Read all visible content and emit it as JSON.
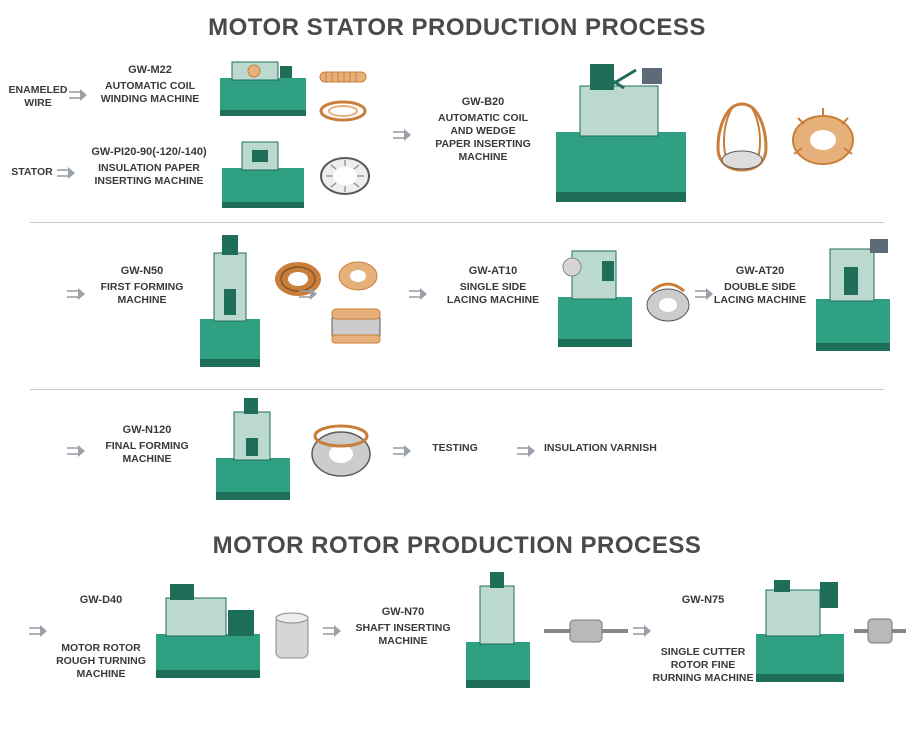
{
  "titles": {
    "stator": "MOTOR STATOR PRODUCTION PROCESS",
    "rotor": "MOTOR ROTOR PRODUCTION PROCESS"
  },
  "colors": {
    "machine_body": "#2fa082",
    "machine_dark": "#1f6e5a",
    "machine_panel": "#bcd9cf",
    "coil": "#c97f3b",
    "coil_light": "#e6b07a",
    "stator_ring": "#5a5a5a",
    "rotor_metal": "#b9b9b9",
    "title_color": "#4a4a4a",
    "text_color": "#3a3a3a",
    "arrow_color": "#9aa1a8",
    "hr_color": "#c9c9c9",
    "bg": "#ffffff"
  },
  "inputs": {
    "enameled_wire": "ENAMELED\nWIRE",
    "stator": "STATOR"
  },
  "steps": {
    "m22": {
      "code": "GW-M22",
      "name": "AUTOMATIC COIL\nWINDING MACHINE"
    },
    "p120": {
      "code": "GW-PI20-90(-120/-140)",
      "name": "INSULATION PAPER\nINSERTING MACHINE"
    },
    "b20": {
      "code": "GW-B20",
      "name": "AUTOMATIC COIL\nAND WEDGE\nPAPER INSERTING\nMACHINE"
    },
    "n50": {
      "code": "GW-N50",
      "name": "FIRST FORMING\nMACHINE"
    },
    "at10": {
      "code": "GW-AT10",
      "name": "SINGLE SIDE\nLACING MACHINE"
    },
    "at20": {
      "code": "GW-AT20",
      "name": "DOUBLE SIDE\nLACING MACHINE"
    },
    "n120": {
      "code": "GW-N120",
      "name": "FINAL FORMING\nMACHINE"
    },
    "testing": {
      "code": "",
      "name": "TESTING"
    },
    "varnish": {
      "code": "",
      "name": "INSULATION VARNISH"
    },
    "d40": {
      "code": "GW-D40",
      "name": "MOTOR ROTOR\nROUGH TURNING\nMACHINE"
    },
    "n70": {
      "code": "GW-N70",
      "name": "SHAFT INSERTING\nMACHINE"
    },
    "n75": {
      "code": "GW-N75",
      "name": "SINGLE CUTTER\nROTOR FINE\nRURNING MACHINE"
    }
  }
}
